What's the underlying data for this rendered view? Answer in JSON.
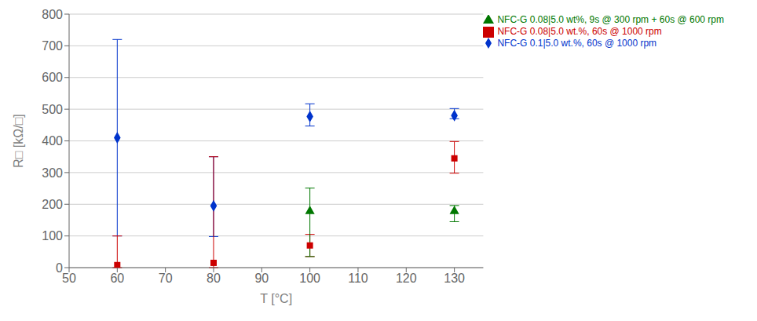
{
  "chart_data": {
    "type": "scatter",
    "xlabel": "T [°C]",
    "ylabel": "R□ [kΩ/□]",
    "xlim": [
      50,
      136
    ],
    "ylim": [
      0,
      800
    ],
    "xticks": [
      50,
      60,
      70,
      80,
      90,
      100,
      110,
      120,
      130
    ],
    "yticks": [
      0,
      100,
      200,
      300,
      400,
      500,
      600,
      700,
      800
    ],
    "grid": true,
    "legend": "upper right",
    "series": [
      {
        "name": "NFC-G 0.1|5.0 wt.%, 60s @ 1000 rpm",
        "color": "#0033CC",
        "marker": "diamond",
        "x": [
          60,
          80,
          100,
          130
        ],
        "values": [
          410,
          195,
          477,
          480
        ],
        "error_low": [
          310,
          97,
          30,
          10
        ],
        "error_high": [
          310,
          155,
          40,
          22
        ]
      },
      {
        "name": "NFC-G 0.08|5.0 wt.%, 60s @ 1000 rpm",
        "color": "#CC0000",
        "marker": "square",
        "x": [
          60,
          80,
          100,
          130
        ],
        "values": [
          8,
          15,
          70,
          345
        ],
        "error_low": [
          8,
          15,
          35,
          47
        ],
        "error_high": [
          92,
          335,
          35,
          53
        ]
      },
      {
        "name": "NFC-G 0.08|5.0 wt%, 9s @ 300 rpm + 60s @ 600 rpm",
        "color": "#007700",
        "marker": "triangle",
        "x": [
          100,
          130
        ],
        "values": [
          178,
          178
        ],
        "error_low": [
          143,
          33
        ],
        "error_high": [
          73,
          18
        ]
      }
    ]
  }
}
